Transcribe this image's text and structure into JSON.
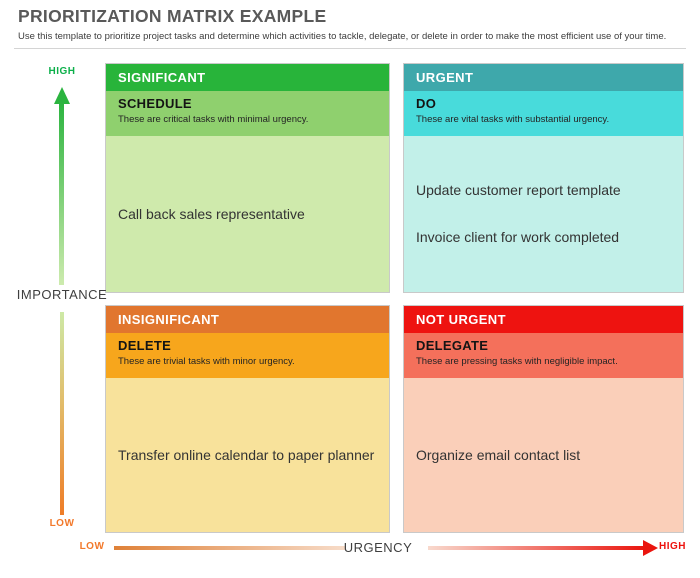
{
  "page": {
    "title": "PRIORITIZATION MATRIX EXAMPLE",
    "subtitle": "Use this template to prioritize project tasks and determine which activities to tackle, delegate, or delete in order to make the most efficient use of your time."
  },
  "axes": {
    "importance": {
      "label": "IMPORTANCE",
      "high": "HIGH",
      "low": "LOW"
    },
    "urgency": {
      "label": "URGENCY",
      "high": "HIGH",
      "low": "LOW"
    }
  },
  "quadrants": {
    "schedule": {
      "header": "SIGNIFICANT",
      "action": "SCHEDULE",
      "description": "These are critical tasks with minimal urgency.",
      "tasks": [
        "Call back sales representative"
      ],
      "colors": {
        "header": "#28b43a",
        "band": "#8fd06e",
        "body": "#cfeaac"
      }
    },
    "do": {
      "header": "URGENT",
      "action": "DO",
      "description": "These are vital tasks with substantial urgency.",
      "tasks": [
        "Update customer report template",
        "Invoice client for work completed"
      ],
      "colors": {
        "header": "#3ea8ab",
        "band": "#48dbdb",
        "body": "#c2f0e9"
      }
    },
    "delete": {
      "header": "INSIGNIFICANT",
      "action": "DELETE",
      "description": "These are trivial tasks with minor urgency.",
      "tasks": [
        "Transfer online calendar to paper planner"
      ],
      "colors": {
        "header": "#e1762e",
        "band": "#f7a61c",
        "body": "#f8e29b"
      }
    },
    "delegate": {
      "header": "NOT URGENT",
      "action": "DELEGATE",
      "description": "These are pressing tasks with negligible impact.",
      "tasks": [
        "Organize email contact list"
      ],
      "colors": {
        "header": "#ee1310",
        "band": "#f4705b",
        "body": "#facfb9"
      }
    }
  },
  "accent_colors": {
    "importance_high_green": "#0db04b",
    "importance_low_orange": "#f2792b",
    "urgency_low_orange": "#f2792b",
    "urgency_high_red": "#ed130e",
    "title_gray": "#595959"
  }
}
